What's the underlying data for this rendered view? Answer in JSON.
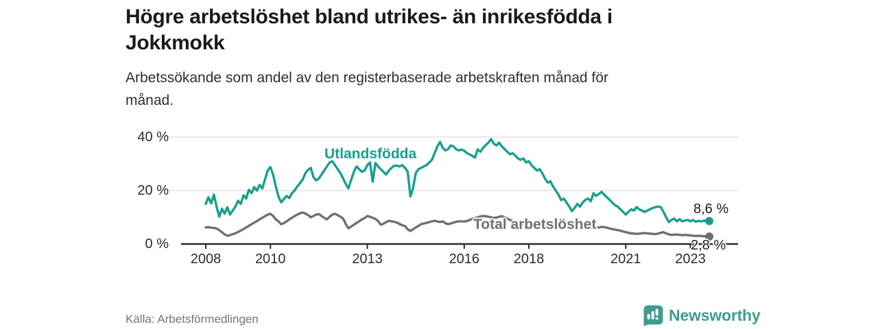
{
  "header": {
    "title_lines": [
      "Högre arbetslöshet bland utrikes- än inrikesfödda i",
      "Jokkmokk"
    ],
    "subtitle_lines": [
      "Arbetssökande som andel av den registerbaserade arbetskraften månad för",
      "månad."
    ]
  },
  "chart_data": {
    "type": "line",
    "title": "Högre arbetslöshet bland utrikes- än inrikesfödda i Jokkmokk",
    "subtitle": "Arbetssökande som andel av den registerbaserade arbetskraften månad för månad.",
    "unit": "%",
    "x_axis": {
      "tick_years": [
        2008,
        2010,
        2013,
        2016,
        2018,
        2021,
        2023
      ]
    },
    "y_axis": {
      "range": [
        0,
        40
      ],
      "gridlines": true,
      "ticks": [
        {
          "value": 40,
          "label": "40 %"
        },
        {
          "value": 20,
          "label": "20 %"
        },
        {
          "value": 0,
          "label": "0 %"
        }
      ]
    },
    "legend_position": "inline-labels",
    "series": [
      {
        "name": "Utlandsfödda",
        "color": "#16a08c",
        "start": "2008-01",
        "frequency": "monthly",
        "end_value": 8.6,
        "end_label": "8,6 %",
        "values": [
          15.0,
          17.5,
          15.2,
          18.5,
          14.0,
          10.2,
          13.2,
          11.3,
          13.8,
          11.0,
          12.5,
          14.0,
          16.2,
          15.0,
          18.2,
          17.0,
          20.3,
          19.0,
          21.3,
          20.0,
          22.1,
          20.8,
          24.1,
          27.5,
          28.8,
          26.0,
          21.5,
          17.8,
          15.6,
          16.8,
          18.0,
          17.2,
          19.0,
          20.0,
          21.5,
          22.8,
          24.1,
          26.5,
          27.8,
          28.5,
          25.0,
          23.8,
          24.5,
          26.0,
          27.5,
          29.0,
          30.5,
          31.0,
          29.5,
          28.0,
          26.5,
          24.5,
          22.5,
          20.8,
          24.0,
          27.0,
          29.0,
          28.0,
          27.0,
          27.5,
          29.5,
          30.5,
          23.3,
          30.3,
          29.0,
          28.0,
          27.0,
          26.0,
          27.5,
          28.5,
          29.3,
          29.3,
          29.0,
          29.5,
          28.5,
          27.0,
          17.8,
          21.0,
          26.5,
          28.0,
          28.5,
          29.0,
          29.5,
          30.5,
          31.5,
          34.0,
          36.5,
          38.2,
          36.0,
          35.0,
          35.5,
          36.9,
          36.5,
          35.5,
          35.0,
          35.3,
          34.9,
          34.0,
          33.5,
          33.0,
          32.3,
          35.4,
          34.5,
          36.0,
          37.0,
          38.0,
          39.2,
          37.5,
          36.9,
          37.9,
          36.5,
          35.5,
          34.5,
          33.6,
          34.0,
          33.0,
          32.0,
          31.5,
          32.0,
          30.5,
          31.0,
          29.5,
          28.5,
          27.5,
          28.0,
          26.5,
          24.5,
          23.0,
          23.5,
          21.5,
          20.0,
          18.5,
          16.4,
          17.0,
          15.5,
          14.0,
          12.3,
          13.5,
          15.0,
          14.0,
          15.5,
          16.5,
          17.0,
          16.0,
          19.0,
          18.0,
          18.7,
          19.5,
          18.5,
          17.5,
          16.5,
          15.5,
          14.5,
          14.0,
          13.0,
          12.0,
          11.0,
          12.0,
          13.0,
          12.5,
          13.8,
          13.0,
          12.5,
          12.0,
          12.5,
          13.0,
          13.5,
          13.8,
          14.0,
          13.8,
          12.0,
          10.0,
          8.2,
          9.0,
          9.5,
          8.5,
          9.3,
          8.5,
          8.8,
          9.0,
          8.5,
          9.0,
          8.3,
          8.7,
          8.4,
          8.8,
          8.4,
          8.6
        ]
      },
      {
        "name": "Total arbetslöshet",
        "color": "#6f6f74",
        "start": "2008-01",
        "frequency": "monthly",
        "end_value": 2.8,
        "end_label": "2,8 %",
        "values": [
          6.2,
          6.3,
          6.1,
          6.0,
          5.8,
          5.2,
          4.4,
          3.6,
          3.1,
          3.3,
          3.7,
          4.0,
          4.5,
          5.0,
          5.6,
          6.2,
          6.8,
          7.4,
          8.0,
          8.6,
          9.2,
          9.8,
          10.4,
          11.0,
          11.3,
          10.5,
          9.2,
          8.5,
          7.4,
          7.8,
          8.5,
          9.2,
          9.8,
          10.5,
          11.0,
          11.5,
          11.8,
          11.4,
          10.8,
          10.0,
          10.5,
          11.0,
          11.2,
          10.5,
          9.8,
          9.2,
          10.2,
          11.0,
          11.3,
          10.8,
          10.2,
          9.5,
          7.5,
          5.9,
          6.5,
          7.2,
          7.9,
          8.5,
          9.2,
          9.7,
          10.5,
          10.2,
          9.8,
          9.4,
          8.6,
          7.2,
          7.6,
          8.2,
          8.7,
          8.5,
          8.3,
          8.0,
          7.5,
          7.0,
          6.7,
          5.5,
          4.9,
          5.5,
          6.2,
          6.8,
          7.4,
          7.7,
          7.9,
          8.2,
          8.5,
          8.7,
          8.4,
          8.2,
          8.5,
          7.8,
          7.4,
          7.7,
          8.0,
          8.3,
          8.5,
          8.5,
          8.4,
          8.6,
          9.0,
          9.4,
          9.7,
          10.0,
          10.3,
          10.5,
          10.4,
          10.2,
          10.0,
          9.8,
          9.9,
          10.2,
          10.4,
          10.0,
          9.5,
          9.0,
          8.6,
          8.3,
          8.0,
          7.8,
          7.6,
          7.5,
          7.4,
          7.3,
          7.2,
          7.0,
          6.9,
          6.8,
          6.7,
          6.6,
          6.6,
          6.5,
          6.5,
          6.4,
          6.4,
          6.3,
          6.2,
          6.2,
          6.1,
          6.1,
          6.0,
          6.0,
          6.0,
          6.0,
          6.0,
          6.1,
          6.2,
          6.1,
          6.2,
          6.4,
          6.3,
          6.1,
          5.8,
          5.6,
          5.4,
          5.2,
          5.0,
          4.7,
          4.4,
          4.2,
          4.0,
          3.9,
          3.8,
          3.9,
          4.0,
          4.1,
          4.0,
          3.9,
          3.8,
          3.7,
          3.9,
          4.2,
          4.4,
          4.0,
          3.6,
          3.4,
          3.5,
          3.6,
          3.4,
          3.3,
          3.4,
          3.3,
          3.2,
          3.1,
          3.0,
          3.1,
          3.0,
          2.9,
          2.9,
          2.8
        ]
      }
    ]
  },
  "footer": {
    "source": "Källa: Arbetsförmedlingen",
    "brand_name": "Newsworthy"
  },
  "colors": {
    "accent_teal": "#16a08c",
    "line_gray": "#6f6f74",
    "brand_teal": "#3f9c8e",
    "axis_dark": "#2b2b2b",
    "gridline": "#dcdcdc"
  }
}
